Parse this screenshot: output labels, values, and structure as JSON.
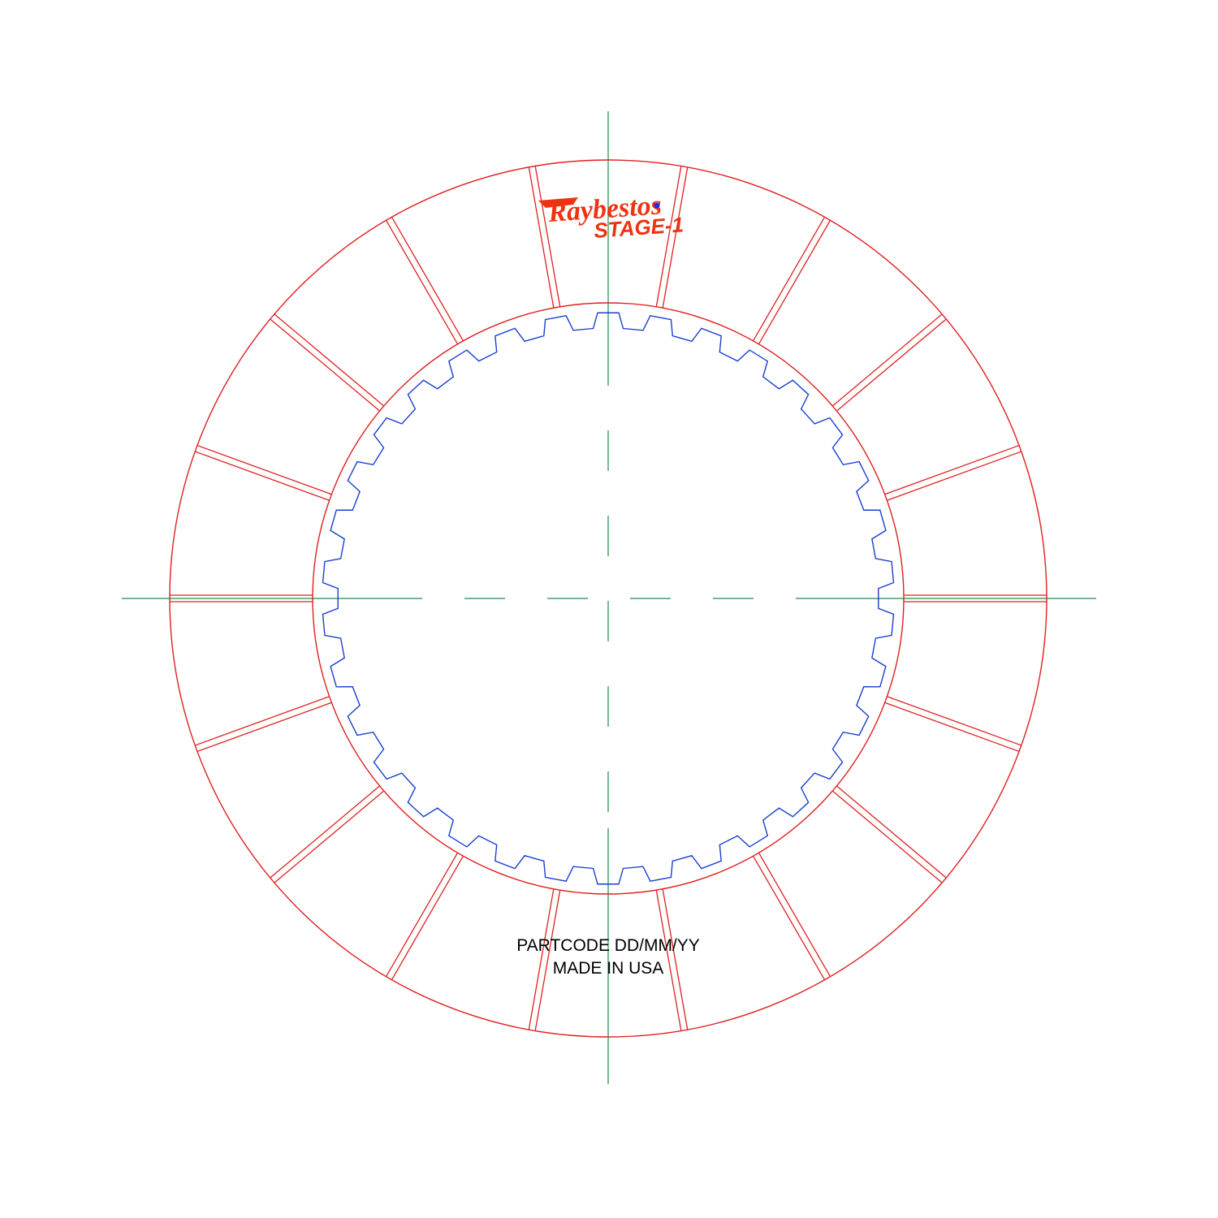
{
  "logo": {
    "brand": "Raybestos",
    "product": "STAGE-1",
    "mark": "brand-logo"
  },
  "marking": {
    "line1": "PARTCODE DD/MM/YY",
    "line2": "MADE IN USA"
  },
  "drawing": {
    "groove_count": 18,
    "spline_tooth_count": 34
  },
  "colors": {
    "outline": "#e02020",
    "spline": "#1a3fd0",
    "centerline": "#1e8c4a",
    "logo": "#ee3311",
    "logo_dot": "#1133ee",
    "text": "#000000"
  }
}
